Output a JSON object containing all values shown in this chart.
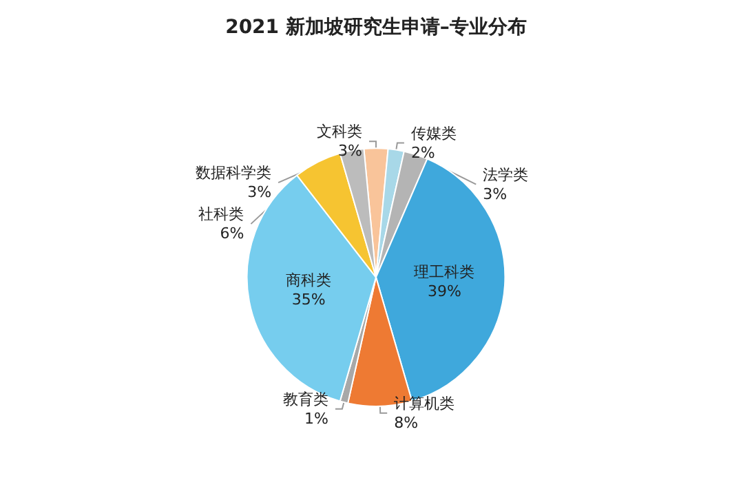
{
  "chart_data": {
    "type": "pie",
    "title": "2021 新加坡研究生申请–专业分布",
    "categories": [
      "文科类",
      "传媒类",
      "法学类",
      "理工科类",
      "计算机类",
      "教育类",
      "商科类",
      "社科类",
      "数据科学类"
    ],
    "values": [
      3,
      2,
      3,
      39,
      8,
      1,
      35,
      6,
      3
    ],
    "value_labels": [
      "3%",
      "2%",
      "3%",
      "39%",
      "8%",
      "1%",
      "35%",
      "6%",
      "3%"
    ],
    "colors": [
      "#f9c49a",
      "#a8d8e8",
      "#b4b4b4",
      "#3fa8dc",
      "#ee7a33",
      "#a8a8a8",
      "#76cdee",
      "#f6c431",
      "#bcbcbc"
    ],
    "legend": false
  }
}
